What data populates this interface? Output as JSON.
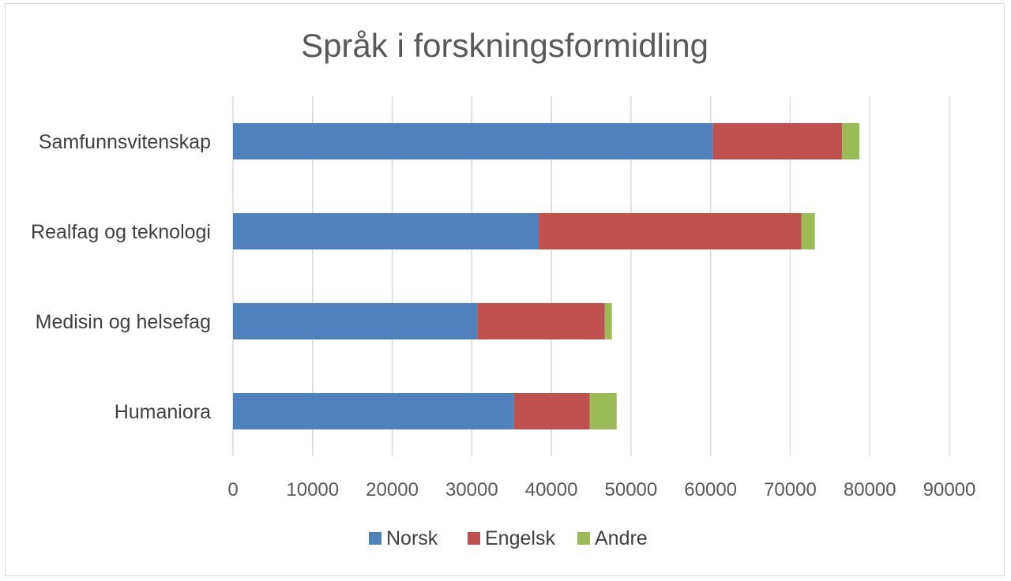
{
  "chart_data": {
    "type": "bar",
    "orientation": "horizontal",
    "stacked": true,
    "title": "Språk i forskningsformidling",
    "categories": [
      "Samfunnsvitenskap",
      "Realfag og teknologi",
      "Medisin og helsefag",
      "Humaniora"
    ],
    "series": [
      {
        "name": "Norsk",
        "color": "#4f81bd",
        "values": [
          60300,
          38400,
          30700,
          35300
        ]
      },
      {
        "name": "Engelsk",
        "color": "#c0504d",
        "values": [
          16200,
          33000,
          16000,
          9500
        ]
      },
      {
        "name": "Andre",
        "color": "#9bbb59",
        "values": [
          2200,
          1700,
          900,
          3400
        ]
      }
    ],
    "xlim": [
      0,
      90000
    ],
    "xticks": [
      "0",
      "10000",
      "20000",
      "30000",
      "40000",
      "50000",
      "60000",
      "70000",
      "80000",
      "90000"
    ],
    "grid": true,
    "legend_position": "bottom"
  }
}
